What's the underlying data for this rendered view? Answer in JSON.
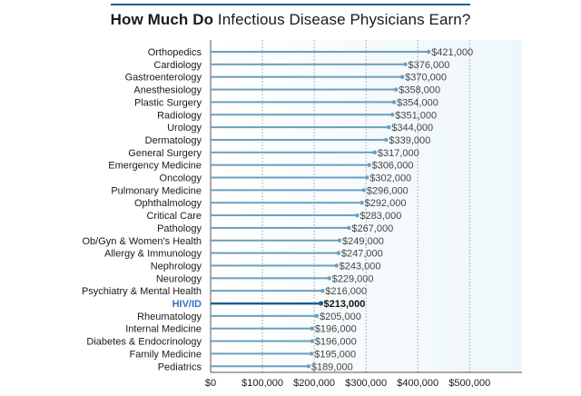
{
  "chart_data": {
    "type": "bar",
    "orientation": "horizontal",
    "title_bold": "How Much Do",
    "title_rest": " Infectious Disease Physicians Earn?",
    "categories": [
      "Orthopedics",
      "Cardiology",
      "Gastroenterology",
      "Anesthesiology",
      "Plastic Surgery",
      "Radiology",
      "Urology",
      "Dermatology",
      "General Surgery",
      "Emergency Medicine",
      "Oncology",
      "Pulmonary Medicine",
      "Ophthalmology",
      "Critical Care",
      "Pathology",
      "Ob/Gyn & Women's Health",
      "Allergy & Immunology",
      "Nephrology",
      "Neurology",
      "Psychiatry & Mental Health",
      "HIV/ID",
      "Rheumatology",
      "Internal Medicine",
      "Diabetes & Endocrinology",
      "Family Medicine",
      "Pediatrics"
    ],
    "values": [
      421000,
      376000,
      370000,
      358000,
      354000,
      351000,
      344000,
      339000,
      317000,
      306000,
      302000,
      296000,
      292000,
      283000,
      267000,
      249000,
      247000,
      243000,
      229000,
      216000,
      213000,
      205000,
      196000,
      196000,
      195000,
      189000
    ],
    "value_labels": [
      "$421,000",
      "$376,000",
      "$370,000",
      "$358,000",
      "$354,000",
      "$351,000",
      "$344,000",
      "$339,000",
      "$317,000",
      "$306,000",
      "$302,000",
      "$296,000",
      "$292,000",
      "$283,000",
      "$267,000",
      "$249,000",
      "$247,000",
      "$243,000",
      "$229,000",
      "$216,000",
      "$213,000",
      "$205,000",
      "$196,000",
      "$196,000",
      "$195,000",
      "$189,000"
    ],
    "highlight": "HIV/ID",
    "x_ticks": [
      0,
      100000,
      200000,
      300000,
      400000,
      500000
    ],
    "x_tick_labels": [
      "$0",
      "$100,000",
      "$200,000",
      "$300,000",
      "$400,000",
      "$500,000"
    ],
    "xlim": [
      0,
      600000
    ],
    "grid": true,
    "colors": {
      "bar": "#6b9fc0",
      "highlight_bar": "#1d5f8c",
      "highlight_label": "#3a6fc4",
      "grid": "#8a8a8a",
      "background": "#eef7fb"
    }
  }
}
